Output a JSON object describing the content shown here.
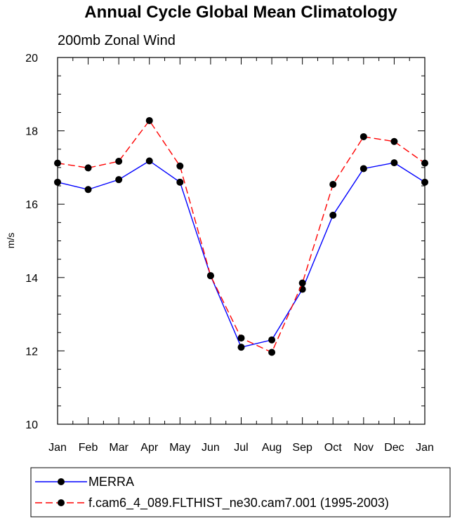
{
  "chart_data": {
    "type": "line",
    "title": "Annual Cycle Global Mean Climatology",
    "subtitle": "200mb Zonal Wind",
    "xlabel": "",
    "ylabel": "m/s",
    "categories": [
      "Jan",
      "Feb",
      "Mar",
      "Apr",
      "May",
      "Jun",
      "Jul",
      "Aug",
      "Sep",
      "Oct",
      "Nov",
      "Dec",
      "Jan"
    ],
    "ylim": [
      10,
      20
    ],
    "yticks": [
      "10",
      "12",
      "14",
      "16",
      "18",
      "20"
    ],
    "grid": false,
    "legend_position": "bottom",
    "series": [
      {
        "name": "MERRA",
        "color": "#0000ff",
        "style": "solid",
        "values": [
          16.6,
          16.4,
          16.67,
          17.18,
          16.6,
          14.05,
          12.1,
          12.3,
          13.68,
          15.7,
          16.97,
          17.13,
          16.6
        ]
      },
      {
        "name": "f.cam6_4_089.FLTHIST_ne30.cam7.001 (1995-2003)",
        "color": "#ff0000",
        "style": "dashed",
        "values": [
          17.12,
          16.99,
          17.17,
          18.28,
          17.04,
          14.05,
          12.35,
          11.96,
          13.85,
          16.54,
          17.84,
          17.71,
          17.12
        ]
      }
    ]
  }
}
